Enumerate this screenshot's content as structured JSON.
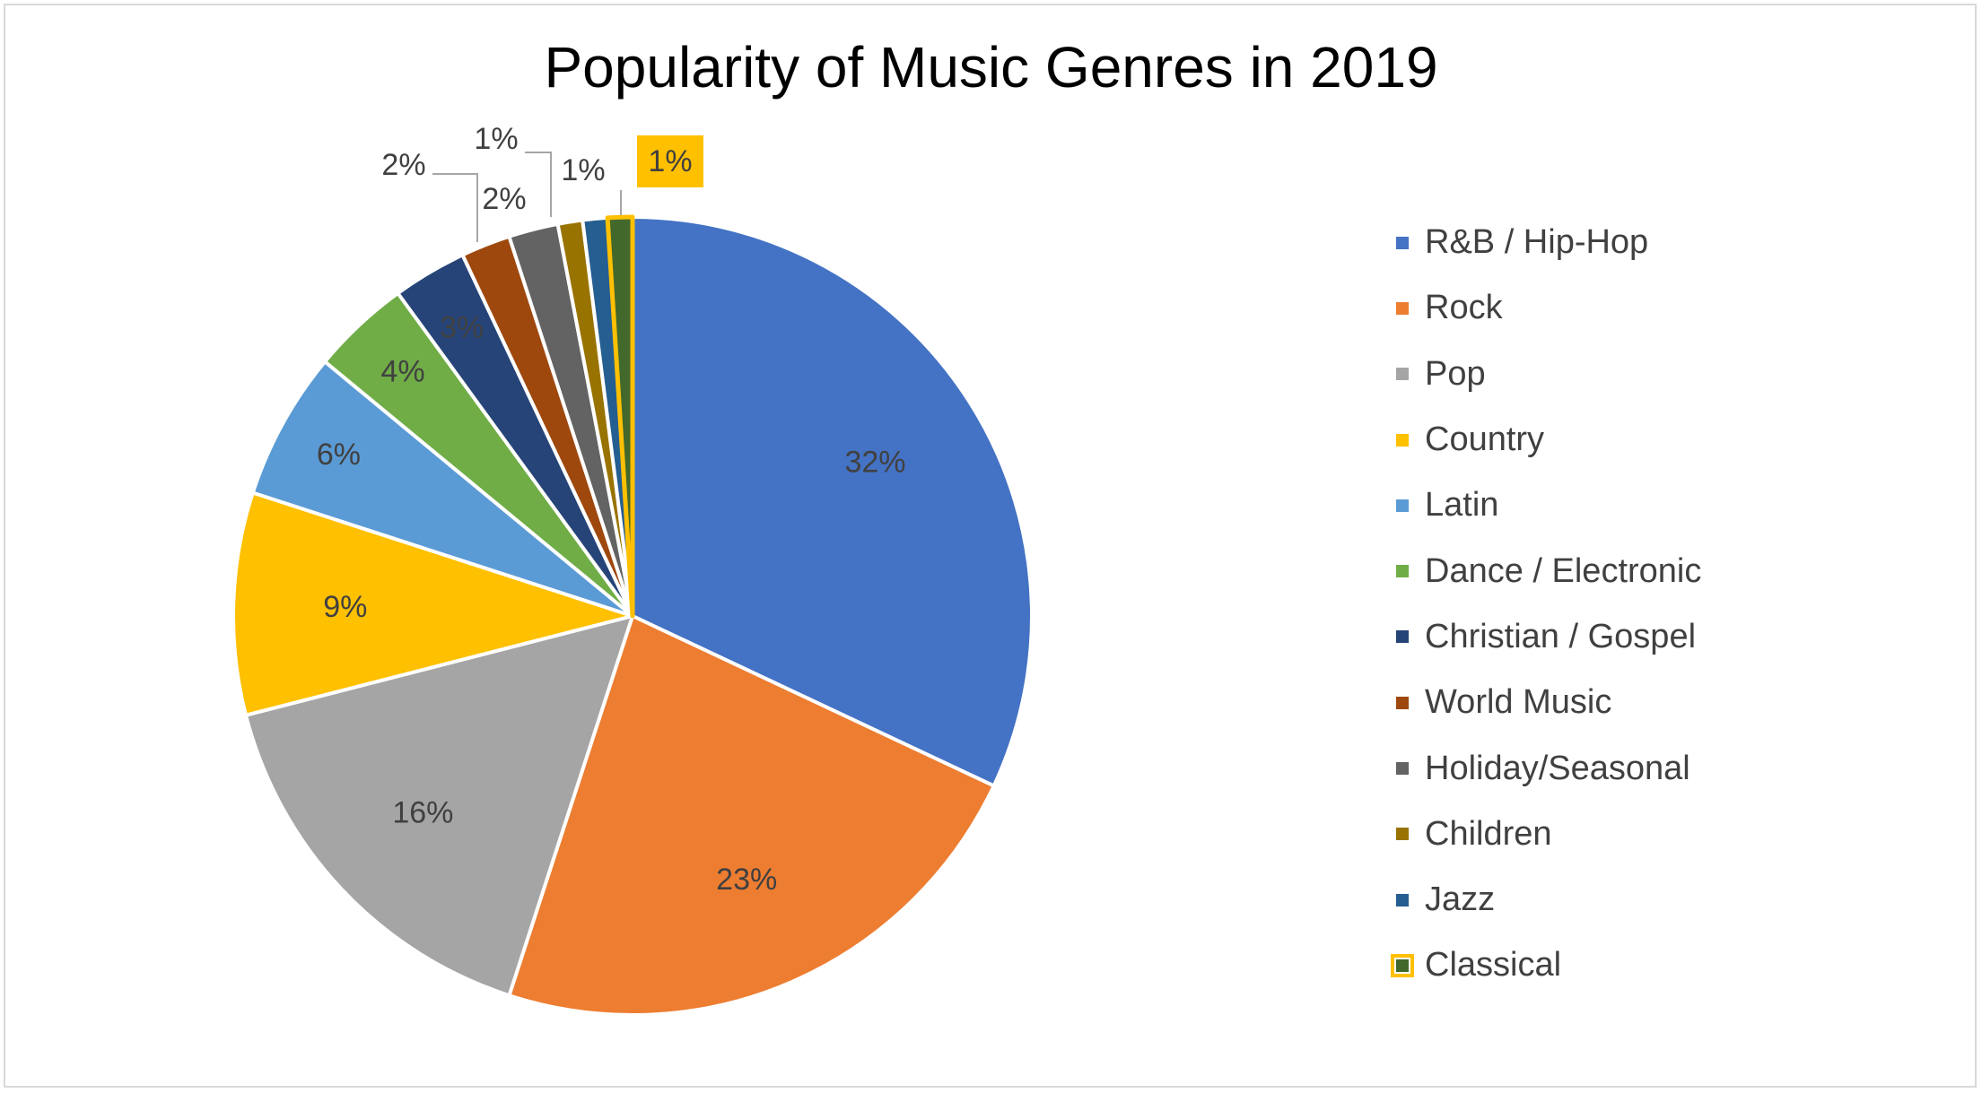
{
  "chart_data": {
    "type": "pie",
    "title": "Popularity of Music Genres in 2019",
    "legend_position": "right",
    "start_angle_deg": 0,
    "direction": "clockwise",
    "highlighted_slice": "Classical",
    "slices": [
      {
        "label": "R&B / Hip-Hop",
        "value": 32,
        "display": "32%",
        "color": "#4472c4"
      },
      {
        "label": "Rock",
        "value": 23,
        "display": "23%",
        "color": "#ed7d31"
      },
      {
        "label": "Pop",
        "value": 16,
        "display": "16%",
        "color": "#a5a5a5"
      },
      {
        "label": "Country",
        "value": 9,
        "display": "9%",
        "color": "#ffc000"
      },
      {
        "label": "Latin",
        "value": 6,
        "display": "6%",
        "color": "#5b9bd5"
      },
      {
        "label": "Dance / Electronic",
        "value": 4,
        "display": "4%",
        "color": "#70ad47"
      },
      {
        "label": "Christian / Gospel",
        "value": 3,
        "display": "3%",
        "color": "#264478"
      },
      {
        "label": "World Music",
        "value": 2,
        "display": "2%",
        "color": "#9e480e"
      },
      {
        "label": "Holiday/Seasonal",
        "value": 2,
        "display": "2%",
        "color": "#636363"
      },
      {
        "label": "Children",
        "value": 1,
        "display": "1%",
        "color": "#997300"
      },
      {
        "label": "Jazz",
        "value": 1,
        "display": "1%",
        "color": "#255e91"
      },
      {
        "label": "Classical",
        "value": 1,
        "display": "1%",
        "color": "#43682b"
      }
    ],
    "colors": {
      "highlight_outline": "#ffc000",
      "label_text": "#404040",
      "leader_line": "#a6a6a6",
      "slice_border": "#ffffff"
    }
  }
}
